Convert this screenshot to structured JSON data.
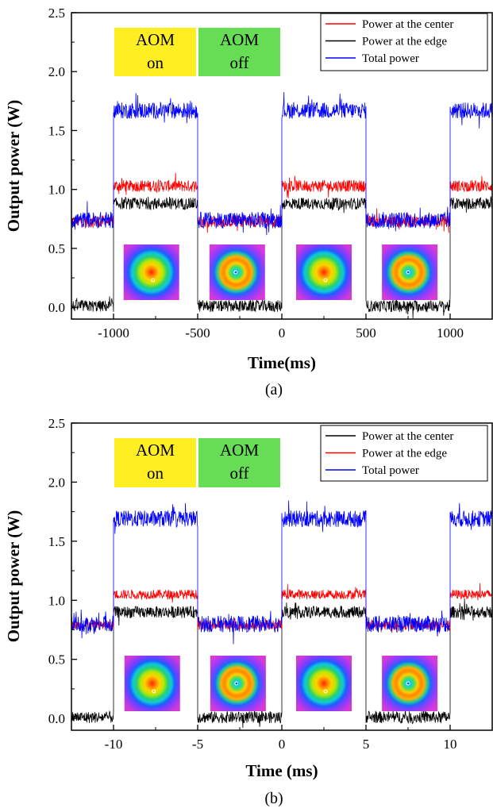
{
  "chart_data": [
    {
      "type": "line",
      "panel_label": "(a)",
      "xlabel": "Time(ms)",
      "ylabel": "Output power (W)",
      "xlim": [
        -1250,
        1250
      ],
      "ylim": [
        -0.1,
        2.5
      ],
      "xticks": [
        -1000,
        -500,
        0,
        500,
        1000
      ],
      "xtick_labels": [
        "-1000",
        "-500",
        "0",
        "500",
        "1000"
      ],
      "yticks": [
        0.0,
        0.5,
        1.0,
        1.5,
        2.0,
        2.5
      ],
      "ytick_labels": [
        "0.0",
        "0.5",
        "1.0",
        "1.5",
        "2.0",
        "2.5"
      ],
      "switch_times": [
        -1000,
        -500,
        0,
        500,
        1000
      ],
      "aom_boxes": [
        {
          "label_top": "AOM",
          "label_bottom": "on",
          "color": "#ffee22",
          "x_range": [
            -1000,
            -500
          ]
        },
        {
          "label_top": "AOM",
          "label_bottom": "off",
          "color": "#66dd55",
          "x_range": [
            -500,
            0
          ]
        }
      ],
      "segments": [
        {
          "x_range": [
            -1250,
            -1000
          ],
          "aom": "off"
        },
        {
          "x_range": [
            -1000,
            -500
          ],
          "aom": "on"
        },
        {
          "x_range": [
            -500,
            0
          ],
          "aom": "off"
        },
        {
          "x_range": [
            0,
            500
          ],
          "aom": "on"
        },
        {
          "x_range": [
            500,
            1000
          ],
          "aom": "off"
        },
        {
          "x_range": [
            1000,
            1250
          ],
          "aom": "on"
        }
      ],
      "series": [
        {
          "name": "Power at the center",
          "color": "#ff0000",
          "level_aom_on": 1.03,
          "level_aom_off": 0.73,
          "noise": 0.05
        },
        {
          "name": "Power at the edge",
          "color": "#000000",
          "level_aom_on": 0.88,
          "level_aom_off": 0.01,
          "noise": 0.05
        },
        {
          "name": "Total power",
          "color": "#0000ff",
          "level_aom_on": 1.67,
          "level_aom_off": 0.74,
          "noise": 0.07
        }
      ],
      "insets": [
        {
          "x_center": -775,
          "pattern": "ring-off-center"
        },
        {
          "x_center": -265,
          "pattern": "ring-centered"
        },
        {
          "x_center": 250,
          "pattern": "ring-off-center"
        },
        {
          "x_center": 760,
          "pattern": "ring-centered"
        }
      ]
    },
    {
      "type": "line",
      "panel_label": "(b)",
      "xlabel": "Time (ms)",
      "ylabel": "Output power (W)",
      "xlim": [
        -12.5,
        12.5
      ],
      "ylim": [
        -0.1,
        2.5
      ],
      "xticks": [
        -10,
        -5,
        0,
        5,
        10
      ],
      "xtick_labels": [
        "-10",
        "-5",
        "0",
        "5",
        "10"
      ],
      "yticks": [
        0.0,
        0.5,
        1.0,
        1.5,
        2.0,
        2.5
      ],
      "ytick_labels": [
        "0.0",
        "0.5",
        "1.0",
        "1.5",
        "2.0",
        "2.5"
      ],
      "switch_times": [
        -10,
        -5,
        0,
        5,
        10
      ],
      "aom_boxes": [
        {
          "label_top": "AOM",
          "label_bottom": "on",
          "color": "#ffee22",
          "x_range": [
            -10,
            -5
          ]
        },
        {
          "label_top": "AOM",
          "label_bottom": "off",
          "color": "#66dd55",
          "x_range": [
            -5,
            0
          ]
        }
      ],
      "segments": [
        {
          "x_range": [
            -12.5,
            -10
          ],
          "aom": "off"
        },
        {
          "x_range": [
            -10,
            -5
          ],
          "aom": "on"
        },
        {
          "x_range": [
            -5,
            0
          ],
          "aom": "off"
        },
        {
          "x_range": [
            0,
            5
          ],
          "aom": "on"
        },
        {
          "x_range": [
            5,
            10
          ],
          "aom": "off"
        },
        {
          "x_range": [
            10,
            12.5
          ],
          "aom": "on"
        }
      ],
      "series": [
        {
          "name": "Power at the center",
          "color": "#000000",
          "level_aom_on": 0.9,
          "level_aom_off": 0.01,
          "noise": 0.05
        },
        {
          "name": "Power at the edge",
          "color": "#ff0000",
          "level_aom_on": 1.05,
          "level_aom_off": 0.79,
          "noise": 0.04
        },
        {
          "name": "Total power",
          "color": "#0000ff",
          "level_aom_on": 1.69,
          "level_aom_off": 0.8,
          "noise": 0.07
        }
      ],
      "insets": [
        {
          "x_center": -7.7,
          "pattern": "ring-off-center"
        },
        {
          "x_center": -2.6,
          "pattern": "ring-centered"
        },
        {
          "x_center": 2.5,
          "pattern": "ring-off-center"
        },
        {
          "x_center": 7.6,
          "pattern": "ring-centered"
        }
      ]
    }
  ]
}
